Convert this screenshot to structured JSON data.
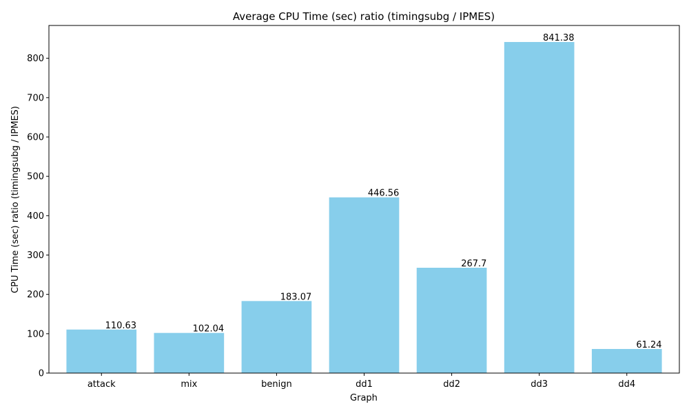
{
  "chart_data": {
    "type": "bar",
    "title": "Average CPU Time (sec) ratio (timingsubg / IPMES)",
    "xlabel": "Graph",
    "ylabel": "CPU Time (sec) ratio (timingsubg / IPMES)",
    "categories": [
      "attack",
      "mix",
      "benign",
      "dd1",
      "dd2",
      "dd3",
      "dd4"
    ],
    "values": [
      110.63,
      102.04,
      183.07,
      446.56,
      267.7,
      841.38,
      61.24
    ],
    "value_labels": [
      "110.63",
      "102.04",
      "183.07",
      "446.56",
      "267.7",
      "841.38",
      "61.24"
    ],
    "ylim": [
      0,
      883.4
    ],
    "yticks": [
      0,
      100,
      200,
      300,
      400,
      500,
      600,
      700,
      800
    ],
    "grid": false,
    "legend": "none",
    "bar_color": "#87CEEB"
  }
}
